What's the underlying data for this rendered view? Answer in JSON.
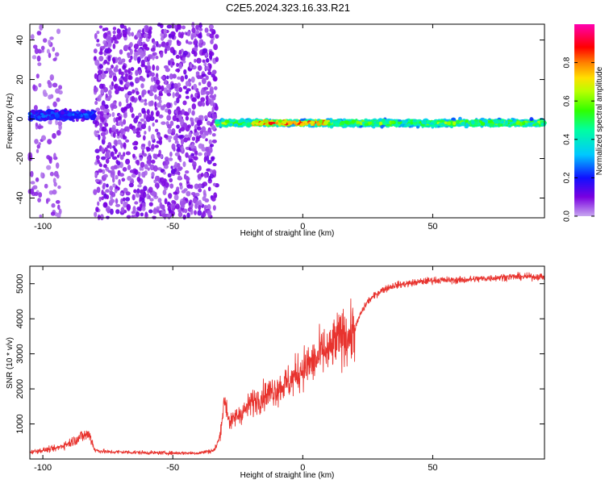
{
  "title": "C2E5.2024.323.16.33.R21",
  "colors": {
    "snr_line": "#e8332e",
    "axis": "#000000",
    "background": "#ffffff"
  },
  "chart_data": [
    {
      "type": "heatmap",
      "xlabel": "Height of straight line (km)",
      "ylabel": "Frequency (Hz)",
      "xlim": [
        -105,
        93
      ],
      "ylim": [
        -50,
        48
      ],
      "xticks": [
        -100,
        -50,
        0,
        50
      ],
      "yticks": [
        40,
        20,
        0,
        -20,
        -40
      ],
      "colorbar": {
        "label": "Normalized spectral amplitude",
        "range": [
          0,
          1
        ],
        "ticks": [
          0.0,
          0.2,
          0.4,
          0.6,
          0.8
        ],
        "colormap": "rainbow (violet→blue→cyan→green→yellow→red→magenta)"
      },
      "regions": [
        {
          "x": [
            -105,
            -93
          ],
          "freq_spread": [
            -50,
            48
          ],
          "note": "sparse scattered low amplitude"
        },
        {
          "x": [
            -80,
            -33
          ],
          "freq_spread": [
            -50,
            48
          ],
          "note": "dense scattered low amplitude"
        },
        {
          "x": [
            -105,
            -80
          ],
          "center_freq": 2,
          "band_width": 6,
          "amplitude": 0.3
        },
        {
          "x": [
            -33,
            93
          ],
          "center_freq": -2,
          "band_width": 4,
          "amplitude": 0.7,
          "peak_x": [
            -20,
            10
          ]
        }
      ]
    },
    {
      "type": "line",
      "title": "",
      "xlabel": "Height of straight line (km)",
      "ylabel": "SNR (10 * v/v)",
      "xlim": [
        -105,
        93
      ],
      "ylim": [
        0,
        5500
      ],
      "xticks": [
        -100,
        -50,
        0,
        50
      ],
      "yticks": [
        1000,
        2000,
        3000,
        4000,
        5000
      ],
      "series": [
        {
          "x": [
            -105,
            -100,
            -95,
            -90,
            -85,
            -82,
            -80,
            -75,
            -70,
            -60,
            -50,
            -40,
            -34,
            -32,
            -31,
            -30,
            -28,
            -26,
            -24,
            -22,
            -20,
            -15,
            -10,
            -5,
            0,
            5,
            8,
            10,
            12,
            15,
            18,
            20,
            22,
            25,
            30,
            35,
            40,
            50,
            60,
            70,
            80,
            93
          ],
          "y": [
            200,
            250,
            300,
            450,
            650,
            700,
            250,
            200,
            200,
            180,
            170,
            170,
            250,
            600,
            1200,
            1700,
            1000,
            1200,
            1300,
            1400,
            1600,
            1800,
            2000,
            2200,
            2600,
            2800,
            3100,
            3000,
            3300,
            3500,
            3500,
            3700,
            4100,
            4500,
            4800,
            4950,
            5000,
            5100,
            5100,
            5150,
            5200,
            5200
          ]
        }
      ]
    }
  ]
}
